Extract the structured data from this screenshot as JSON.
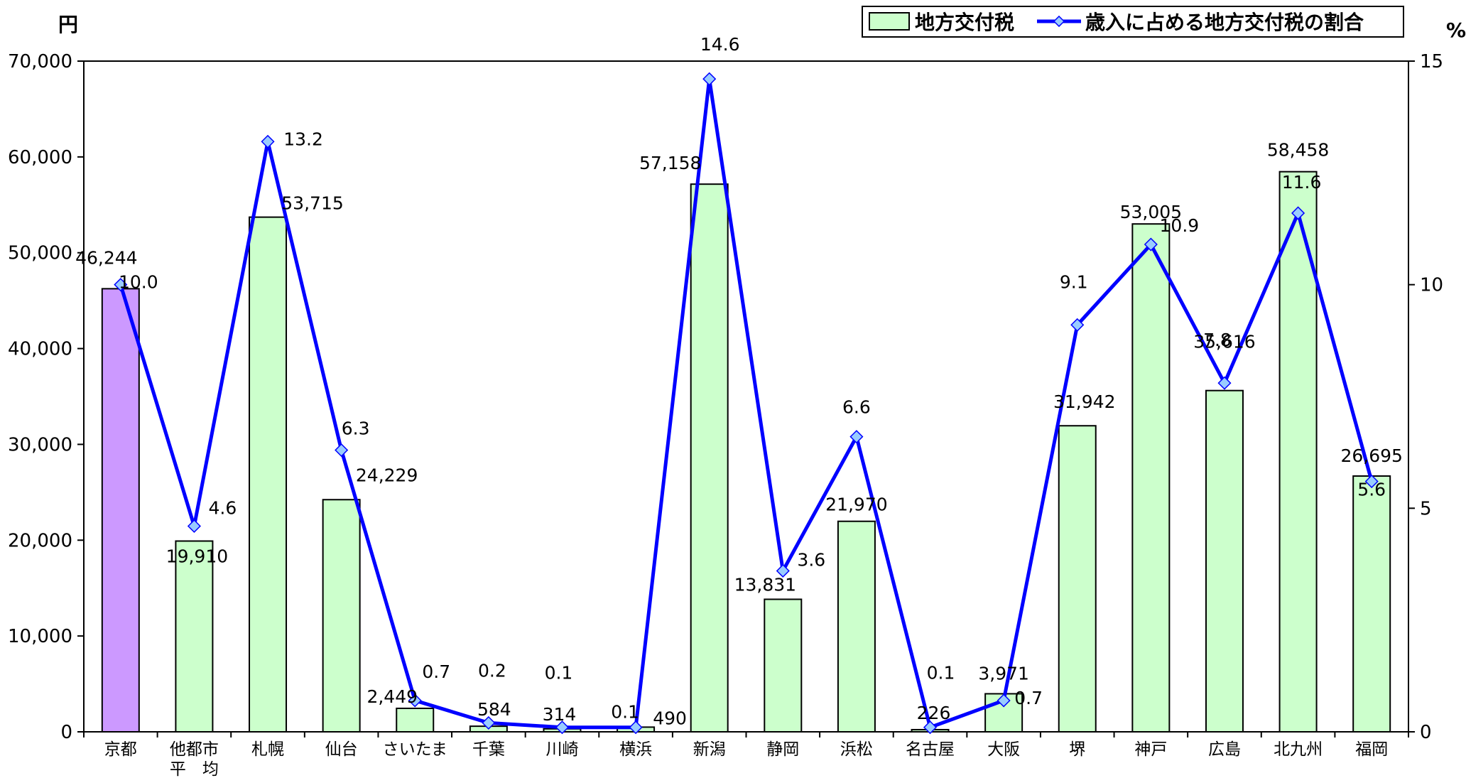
{
  "chart_data": {
    "type": "bar+line",
    "categories": [
      "京都",
      "他都市\n平　均",
      "札幌",
      "仙台",
      "さいたま",
      "千葉",
      "川崎",
      "横浜",
      "新潟",
      "静岡",
      "浜松",
      "名古屋",
      "大阪",
      "堺",
      "神戸",
      "広島",
      "北九州",
      "福岡"
    ],
    "category_lines": [
      [
        "京都"
      ],
      [
        "他都市",
        "平　均"
      ],
      [
        "札幌"
      ],
      [
        "仙台"
      ],
      [
        "さいたま"
      ],
      [
        "千葉"
      ],
      [
        "川崎"
      ],
      [
        "横浜"
      ],
      [
        "新潟"
      ],
      [
        "静岡"
      ],
      [
        "浜松"
      ],
      [
        "名古屋"
      ],
      [
        "大阪"
      ],
      [
        "堺"
      ],
      [
        "神戸"
      ],
      [
        "広島"
      ],
      [
        "北九州"
      ],
      [
        "福岡"
      ]
    ],
    "bar_series": {
      "name": "地方交付税",
      "values": [
        46244,
        19910,
        53715,
        24229,
        2449,
        584,
        314,
        490,
        57158,
        13831,
        21970,
        226,
        3971,
        31942,
        53005,
        35616,
        58458,
        26695
      ],
      "labels": [
        "46,244",
        "19,910",
        "53,715",
        "24,229",
        "2,449",
        "584",
        "314",
        "490",
        "57,158",
        "13,831",
        "21,970",
        "226",
        "3,971",
        "31,942",
        "53,005",
        "35,616",
        "58,458",
        "26,695"
      ]
    },
    "line_series": {
      "name": "歳入に占める地方交付税の割合",
      "values": [
        10.0,
        4.6,
        13.2,
        6.3,
        0.7,
        0.2,
        0.1,
        0.1,
        14.6,
        3.6,
        6.6,
        0.1,
        0.7,
        9.1,
        10.9,
        7.8,
        11.6,
        5.6
      ],
      "labels": [
        "10.0",
        "4.6",
        "13.2",
        "6.3",
        "0.7",
        "0.2",
        "0.1",
        "0.1",
        "14.6",
        "3.6",
        "6.6",
        "0.1",
        "0.7",
        "9.1",
        "10.9",
        "7.8",
        "11.6",
        "5.6"
      ]
    },
    "y_left": {
      "unit": "円",
      "min": 0,
      "max": 70000,
      "ticks": [
        "0",
        "10,000",
        "20,000",
        "30,000",
        "40,000",
        "50,000",
        "60,000",
        "70,000"
      ]
    },
    "y_right": {
      "unit": "%",
      "min": 0,
      "max": 15,
      "ticks": [
        "0",
        "5",
        "10",
        "15"
      ]
    },
    "colors": {
      "bar": "#ccffcc",
      "highlight_bar": "#cc99ff",
      "line": "#0000ff",
      "marker": "#99ccff"
    },
    "highlight_index": 0,
    "legend_position": "top-right",
    "grid": false
  }
}
